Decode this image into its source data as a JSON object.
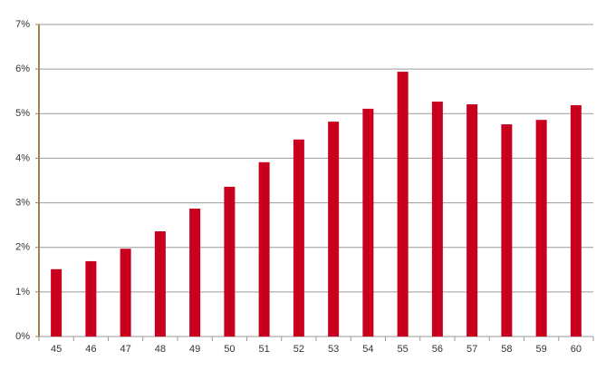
{
  "chart_data": {
    "type": "bar",
    "categories": [
      "45",
      "46",
      "47",
      "48",
      "49",
      "50",
      "51",
      "52",
      "53",
      "54",
      "55",
      "56",
      "57",
      "58",
      "59",
      "60"
    ],
    "values": [
      1.51,
      1.69,
      1.97,
      2.36,
      2.87,
      3.36,
      3.91,
      4.42,
      4.82,
      5.11,
      5.94,
      5.27,
      5.21,
      4.76,
      4.86,
      5.19
    ],
    "color": "#c8001e",
    "ylim": [
      0,
      7
    ],
    "yticks": [
      {
        "value": 0,
        "label": "0%"
      },
      {
        "value": 1,
        "label": "1%"
      },
      {
        "value": 2,
        "label": "2%"
      },
      {
        "value": 3,
        "label": "3%"
      },
      {
        "value": 4,
        "label": "4%"
      },
      {
        "value": 5,
        "label": "5%"
      },
      {
        "value": 6,
        "label": "6%"
      },
      {
        "value": 7,
        "label": "7%"
      }
    ],
    "grid": true
  }
}
